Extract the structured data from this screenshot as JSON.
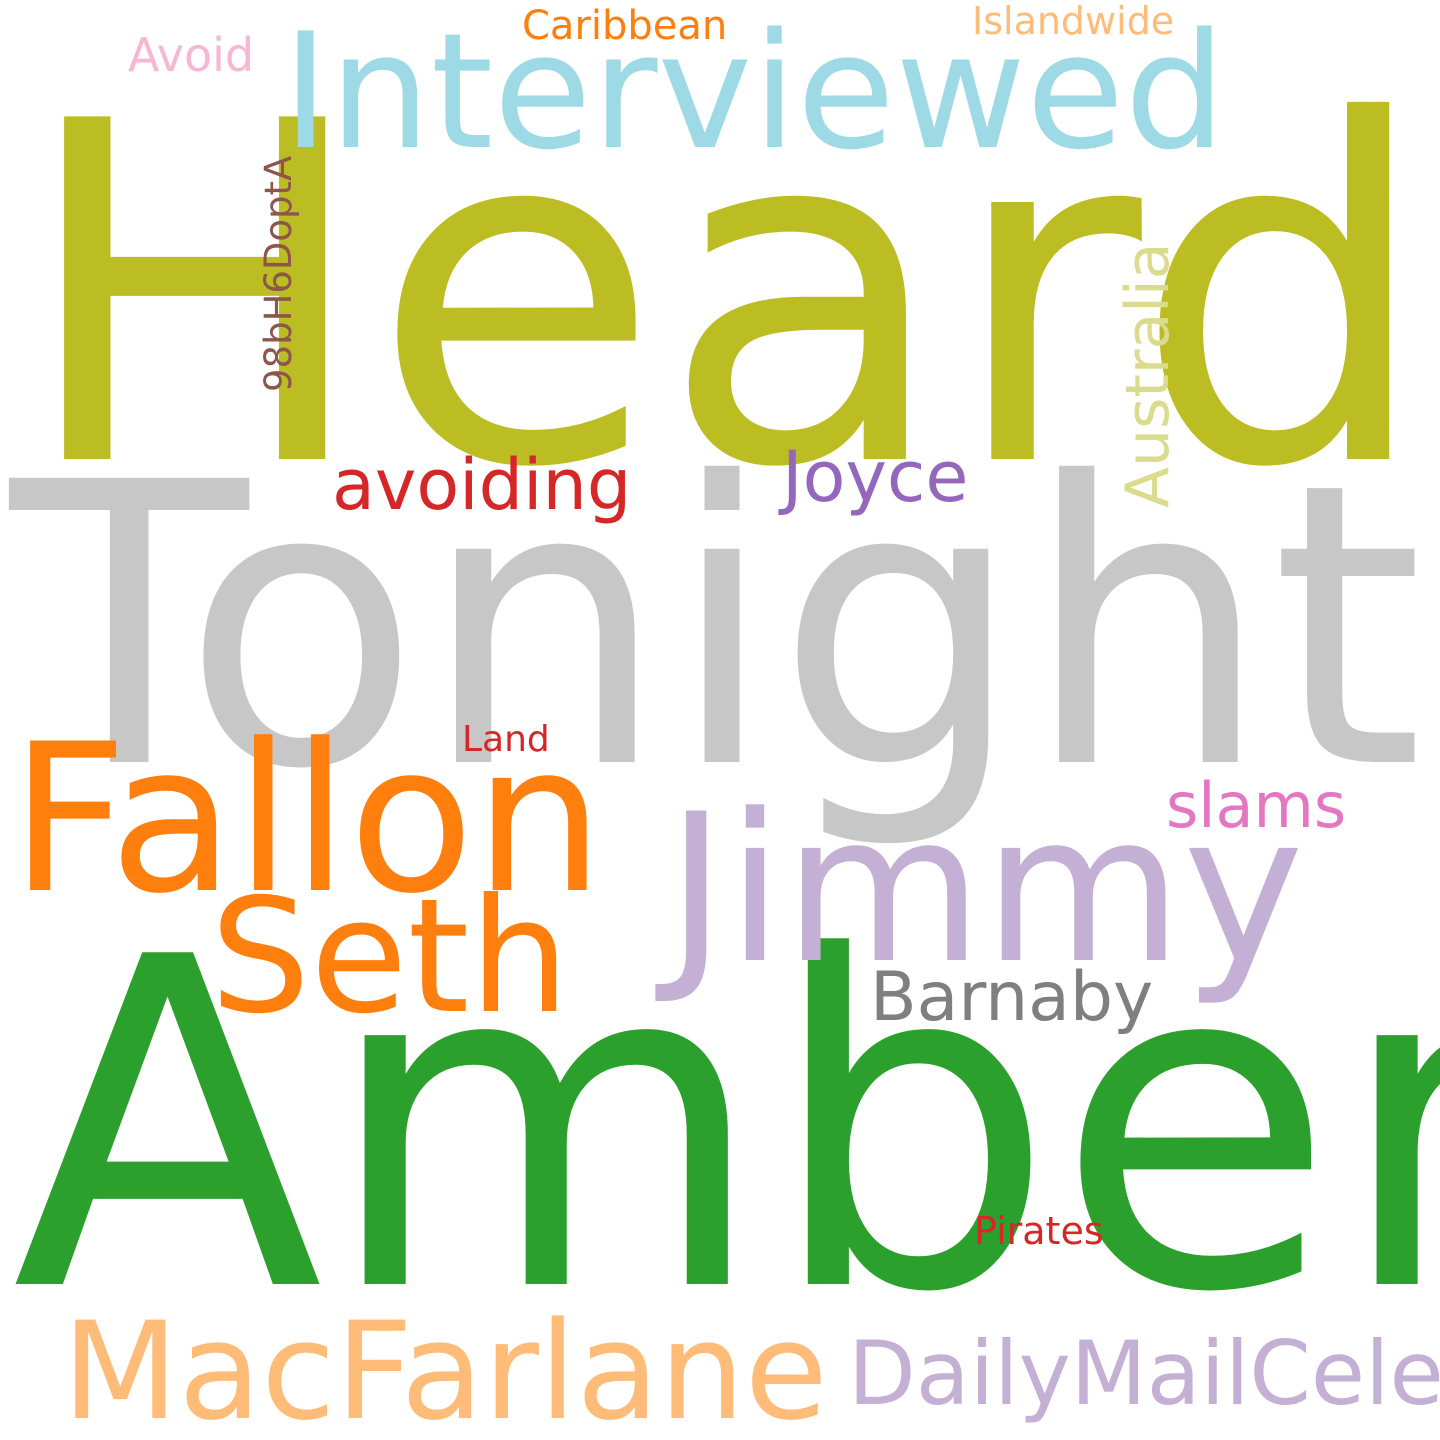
{
  "words": [
    {
      "text": "Heard",
      "color": "#bcbd22"
    },
    {
      "text": "Tonight",
      "color": "#c7c7c7"
    },
    {
      "text": "Amber",
      "color": "#2ca02c"
    },
    {
      "text": "Interviewed",
      "color": "#9edae5"
    },
    {
      "text": "Fallon",
      "color": "#ff7f0e"
    },
    {
      "text": "Jimmy",
      "color": "#c5b0d5"
    },
    {
      "text": "Seth",
      "color": "#ff7f0e"
    },
    {
      "text": "MacFarlane",
      "color": "#ffbb78"
    },
    {
      "text": "DailyMailCeleb",
      "color": "#c5b0d5"
    },
    {
      "text": "Barnaby",
      "color": "#7f7f7f"
    },
    {
      "text": "avoiding",
      "color": "#d62728"
    },
    {
      "text": "Joyce",
      "color": "#9467bd"
    },
    {
      "text": "Australia",
      "color": "#dbdb8d"
    },
    {
      "text": "slams",
      "color": "#e377c2"
    },
    {
      "text": "98bH6DoptA",
      "color": "#8c564b"
    },
    {
      "text": "Caribbean",
      "color": "#ff7f0e"
    },
    {
      "text": "Islandwide",
      "color": "#ffbb78"
    },
    {
      "text": "Avoid",
      "color": "#f7b6d2"
    },
    {
      "text": "Land",
      "color": "#d62728"
    },
    {
      "text": "Pirates",
      "color": "#d62728"
    }
  ]
}
